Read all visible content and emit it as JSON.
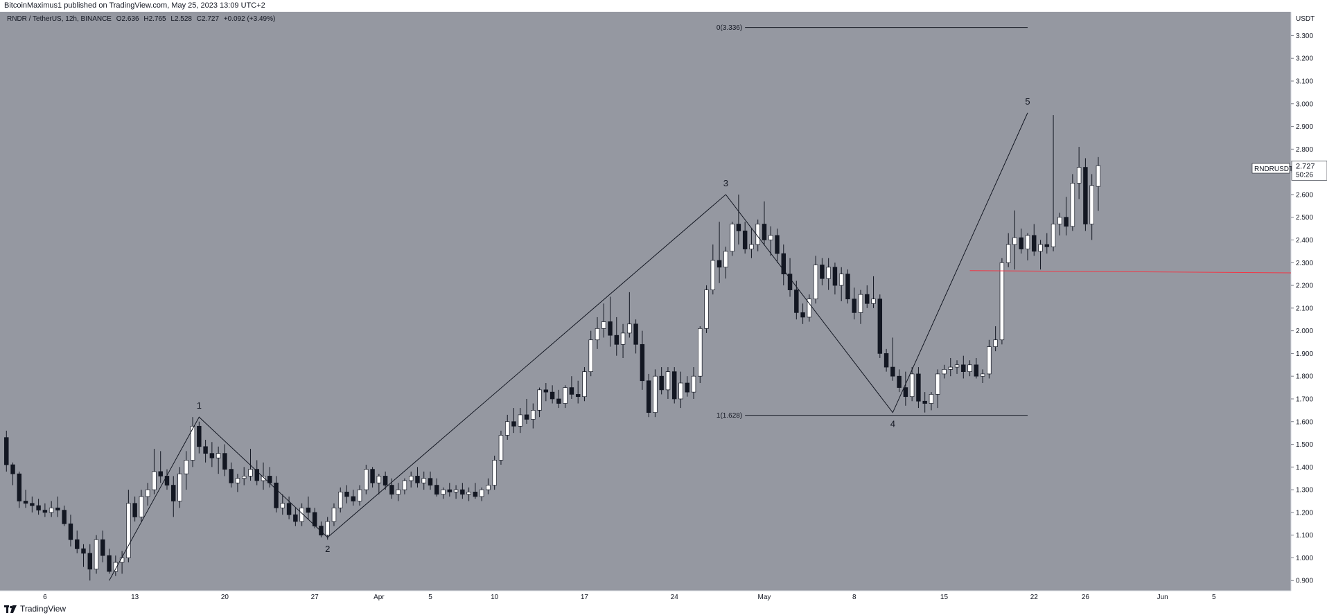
{
  "publisher_line": "BitcoinMaximus1 published on TradingView.com, May 25, 2023 13:09 UTC+2",
  "footer_brand": "TradingView",
  "colors": {
    "pane_background": "#9598a1",
    "up_candle": "#ffffff",
    "down_candle": "#131722",
    "wave_line": "#131722",
    "support_line": "#f23645"
  },
  "legend": {
    "symbol": "RNDR / TetherUS, 12h, BINANCE",
    "open_label": "O",
    "open": "2.636",
    "high_label": "H",
    "high": "2.765",
    "low_label": "L",
    "low": "2.528",
    "close_label": "C",
    "close": "2.727",
    "change": "+0.092 (+3.49%)"
  },
  "price_tag": {
    "ticker": "RNDRUSDT",
    "price": "2.727",
    "countdown": "50:26"
  },
  "chart_data": {
    "type": "candlestick",
    "ylabel": "USDT",
    "ylim": [
      0.855,
      3.405
    ],
    "y_ticks": [
      "0.900",
      "1.000",
      "1.100",
      "1.200",
      "1.300",
      "1.400",
      "1.500",
      "1.600",
      "1.700",
      "1.800",
      "1.900",
      "2.000",
      "2.100",
      "2.200",
      "2.300",
      "2.400",
      "2.500",
      "2.600",
      "2.700",
      "2.800",
      "2.900",
      "3.000",
      "3.100",
      "3.200",
      "3.300"
    ],
    "x_ticks": [
      {
        "label": "6",
        "t": "2023-03-06T00:00"
      },
      {
        "label": "13",
        "t": "2023-03-13T00:00"
      },
      {
        "label": "20",
        "t": "2023-03-20T00:00"
      },
      {
        "label": "27",
        "t": "2023-03-27T00:00"
      },
      {
        "label": "Apr",
        "t": "2023-04-01T00:00"
      },
      {
        "label": "5",
        "t": "2023-04-05T00:00"
      },
      {
        "label": "10",
        "t": "2023-04-10T00:00"
      },
      {
        "label": "17",
        "t": "2023-04-17T00:00"
      },
      {
        "label": "24",
        "t": "2023-04-24T00:00"
      },
      {
        "label": "May",
        "t": "2023-05-01T00:00"
      },
      {
        "label": "8",
        "t": "2023-05-08T00:00"
      },
      {
        "label": "15",
        "t": "2023-05-15T00:00"
      },
      {
        "label": "22",
        "t": "2023-05-22T00:00"
      },
      {
        "label": "26",
        "t": "2023-05-26T00:00"
      },
      {
        "label": "Jun",
        "t": "2023-06-01T00:00"
      },
      {
        "label": "5",
        "t": "2023-06-05T00:00"
      }
    ],
    "x_range": [
      "2023-03-02T12:00",
      "2023-06-11T00:00"
    ],
    "candle_interval_hours": 12,
    "first_candle": "2023-03-03T00:00",
    "ohlc": [
      [
        1.53,
        1.56,
        1.38,
        1.41
      ],
      [
        1.41,
        1.42,
        1.32,
        1.37
      ],
      [
        1.37,
        1.38,
        1.22,
        1.25
      ],
      [
        1.25,
        1.3,
        1.22,
        1.24
      ],
      [
        1.24,
        1.27,
        1.2,
        1.23
      ],
      [
        1.23,
        1.26,
        1.19,
        1.21
      ],
      [
        1.21,
        1.24,
        1.18,
        1.2
      ],
      [
        1.2,
        1.25,
        1.18,
        1.22
      ],
      [
        1.22,
        1.27,
        1.18,
        1.21
      ],
      [
        1.21,
        1.23,
        1.14,
        1.15
      ],
      [
        1.15,
        1.19,
        1.05,
        1.08
      ],
      [
        1.08,
        1.12,
        1.02,
        1.04
      ],
      [
        1.04,
        1.06,
        0.96,
        1.02
      ],
      [
        1.02,
        1.06,
        0.9,
        0.95
      ],
      [
        0.95,
        1.1,
        0.93,
        1.08
      ],
      [
        1.08,
        1.12,
        0.98,
        1.01
      ],
      [
        1.01,
        1.04,
        0.93,
        0.94
      ],
      [
        0.94,
        1.01,
        0.92,
        0.98
      ],
      [
        0.98,
        1.03,
        0.93,
        1.0
      ],
      [
        1.0,
        1.3,
        0.98,
        1.24
      ],
      [
        1.24,
        1.27,
        1.16,
        1.18
      ],
      [
        1.18,
        1.3,
        1.16,
        1.27
      ],
      [
        1.27,
        1.33,
        1.23,
        1.3
      ],
      [
        1.3,
        1.48,
        1.28,
        1.38
      ],
      [
        1.38,
        1.47,
        1.33,
        1.36
      ],
      [
        1.36,
        1.39,
        1.3,
        1.32
      ],
      [
        1.32,
        1.36,
        1.18,
        1.25
      ],
      [
        1.25,
        1.4,
        1.22,
        1.37
      ],
      [
        1.37,
        1.47,
        1.3,
        1.43
      ],
      [
        1.43,
        1.62,
        1.4,
        1.58
      ],
      [
        1.58,
        1.6,
        1.46,
        1.49
      ],
      [
        1.49,
        1.52,
        1.42,
        1.46
      ],
      [
        1.46,
        1.51,
        1.4,
        1.44
      ],
      [
        1.44,
        1.49,
        1.37,
        1.46
      ],
      [
        1.46,
        1.5,
        1.36,
        1.39
      ],
      [
        1.39,
        1.42,
        1.31,
        1.33
      ],
      [
        1.33,
        1.37,
        1.29,
        1.35
      ],
      [
        1.35,
        1.4,
        1.32,
        1.36
      ],
      [
        1.36,
        1.48,
        1.34,
        1.39
      ],
      [
        1.39,
        1.43,
        1.32,
        1.34
      ],
      [
        1.34,
        1.42,
        1.3,
        1.36
      ],
      [
        1.36,
        1.4,
        1.31,
        1.33
      ],
      [
        1.33,
        1.36,
        1.2,
        1.22
      ],
      [
        1.22,
        1.28,
        1.19,
        1.24
      ],
      [
        1.24,
        1.27,
        1.17,
        1.19
      ],
      [
        1.19,
        1.22,
        1.14,
        1.16
      ],
      [
        1.16,
        1.24,
        1.14,
        1.22
      ],
      [
        1.22,
        1.27,
        1.17,
        1.2
      ],
      [
        1.2,
        1.22,
        1.13,
        1.14
      ],
      [
        1.14,
        1.16,
        1.09,
        1.1
      ],
      [
        1.1,
        1.18,
        1.08,
        1.16
      ],
      [
        1.16,
        1.24,
        1.14,
        1.22
      ],
      [
        1.22,
        1.31,
        1.2,
        1.29
      ],
      [
        1.29,
        1.32,
        1.24,
        1.27
      ],
      [
        1.27,
        1.3,
        1.23,
        1.25
      ],
      [
        1.25,
        1.32,
        1.23,
        1.3
      ],
      [
        1.3,
        1.41,
        1.28,
        1.39
      ],
      [
        1.39,
        1.4,
        1.31,
        1.33
      ],
      [
        1.33,
        1.37,
        1.28,
        1.36
      ],
      [
        1.36,
        1.38,
        1.3,
        1.32
      ],
      [
        1.32,
        1.35,
        1.26,
        1.28
      ],
      [
        1.28,
        1.33,
        1.25,
        1.3
      ],
      [
        1.3,
        1.35,
        1.28,
        1.34
      ],
      [
        1.34,
        1.38,
        1.31,
        1.36
      ],
      [
        1.36,
        1.4,
        1.31,
        1.33
      ],
      [
        1.33,
        1.38,
        1.3,
        1.35
      ],
      [
        1.35,
        1.38,
        1.3,
        1.32
      ],
      [
        1.32,
        1.35,
        1.27,
        1.28
      ],
      [
        1.28,
        1.31,
        1.26,
        1.3
      ],
      [
        1.3,
        1.33,
        1.27,
        1.29
      ],
      [
        1.29,
        1.32,
        1.26,
        1.3
      ],
      [
        1.3,
        1.33,
        1.26,
        1.28
      ],
      [
        1.28,
        1.31,
        1.25,
        1.29
      ],
      [
        1.29,
        1.33,
        1.26,
        1.27
      ],
      [
        1.27,
        1.31,
        1.25,
        1.3
      ],
      [
        1.3,
        1.35,
        1.28,
        1.32
      ],
      [
        1.32,
        1.45,
        1.3,
        1.43
      ],
      [
        1.43,
        1.56,
        1.41,
        1.54
      ],
      [
        1.54,
        1.63,
        1.52,
        1.6
      ],
      [
        1.6,
        1.66,
        1.55,
        1.58
      ],
      [
        1.58,
        1.66,
        1.55,
        1.63
      ],
      [
        1.63,
        1.7,
        1.59,
        1.61
      ],
      [
        1.61,
        1.68,
        1.57,
        1.65
      ],
      [
        1.65,
        1.75,
        1.62,
        1.74
      ],
      [
        1.74,
        1.77,
        1.69,
        1.73
      ],
      [
        1.73,
        1.76,
        1.68,
        1.7
      ],
      [
        1.7,
        1.74,
        1.66,
        1.68
      ],
      [
        1.68,
        1.76,
        1.66,
        1.75
      ],
      [
        1.75,
        1.8,
        1.7,
        1.72
      ],
      [
        1.72,
        1.78,
        1.68,
        1.71
      ],
      [
        1.71,
        1.84,
        1.69,
        1.82
      ],
      [
        1.82,
        2.0,
        1.8,
        1.96
      ],
      [
        1.96,
        2.06,
        1.92,
        2.01
      ],
      [
        2.01,
        2.12,
        1.97,
        2.04
      ],
      [
        2.04,
        2.15,
        1.93,
        1.98
      ],
      [
        1.98,
        2.06,
        1.89,
        1.94
      ],
      [
        1.94,
        2.03,
        1.88,
        1.99
      ],
      [
        1.99,
        2.17,
        1.97,
        2.03
      ],
      [
        2.03,
        2.05,
        1.9,
        1.94
      ],
      [
        1.94,
        2.0,
        1.74,
        1.78
      ],
      [
        1.78,
        1.81,
        1.62,
        1.64
      ],
      [
        1.64,
        1.83,
        1.62,
        1.8
      ],
      [
        1.8,
        1.84,
        1.72,
        1.74
      ],
      [
        1.74,
        1.84,
        1.7,
        1.82
      ],
      [
        1.82,
        1.84,
        1.68,
        1.7
      ],
      [
        1.7,
        1.82,
        1.66,
        1.77
      ],
      [
        1.77,
        1.8,
        1.71,
        1.73
      ],
      [
        1.73,
        1.84,
        1.7,
        1.8
      ],
      [
        1.8,
        2.02,
        1.77,
        2.01
      ],
      [
        2.01,
        2.2,
        1.99,
        2.18
      ],
      [
        2.18,
        2.38,
        2.16,
        2.31
      ],
      [
        2.31,
        2.48,
        2.21,
        2.28
      ],
      [
        2.28,
        2.37,
        2.23,
        2.35
      ],
      [
        2.35,
        2.48,
        2.33,
        2.47
      ],
      [
        2.47,
        2.6,
        2.38,
        2.44
      ],
      [
        2.44,
        2.48,
        2.34,
        2.36
      ],
      [
        2.36,
        2.45,
        2.32,
        2.38
      ],
      [
        2.38,
        2.49,
        2.35,
        2.47
      ],
      [
        2.47,
        2.57,
        2.38,
        2.4
      ],
      [
        2.4,
        2.46,
        2.33,
        2.42
      ],
      [
        2.42,
        2.45,
        2.3,
        2.34
      ],
      [
        2.34,
        2.38,
        2.2,
        2.25
      ],
      [
        2.25,
        2.32,
        2.15,
        2.18
      ],
      [
        2.18,
        2.22,
        2.05,
        2.08
      ],
      [
        2.08,
        2.12,
        2.03,
        2.06
      ],
      [
        2.06,
        2.16,
        2.04,
        2.14
      ],
      [
        2.14,
        2.33,
        2.12,
        2.29
      ],
      [
        2.29,
        2.32,
        2.2,
        2.23
      ],
      [
        2.23,
        2.32,
        2.18,
        2.28
      ],
      [
        2.28,
        2.3,
        2.16,
        2.2
      ],
      [
        2.2,
        2.28,
        2.13,
        2.25
      ],
      [
        2.25,
        2.27,
        2.12,
        2.14
      ],
      [
        2.14,
        2.19,
        2.05,
        2.08
      ],
      [
        2.08,
        2.18,
        2.03,
        2.16
      ],
      [
        2.16,
        2.2,
        2.1,
        2.12
      ],
      [
        2.12,
        2.24,
        2.1,
        2.14
      ],
      [
        2.14,
        2.16,
        1.88,
        1.9
      ],
      [
        1.9,
        1.92,
        1.82,
        1.84
      ],
      [
        1.84,
        1.97,
        1.78,
        1.8
      ],
      [
        1.8,
        1.83,
        1.73,
        1.75
      ],
      [
        1.75,
        1.82,
        1.67,
        1.71
      ],
      [
        1.71,
        1.84,
        1.69,
        1.81
      ],
      [
        1.81,
        1.84,
        1.66,
        1.69
      ],
      [
        1.69,
        1.73,
        1.64,
        1.68
      ],
      [
        1.68,
        1.73,
        1.65,
        1.72
      ],
      [
        1.72,
        1.83,
        1.66,
        1.81
      ],
      [
        1.81,
        1.85,
        1.79,
        1.83
      ],
      [
        1.83,
        1.88,
        1.8,
        1.84
      ],
      [
        1.84,
        1.87,
        1.81,
        1.85
      ],
      [
        1.85,
        1.89,
        1.79,
        1.82
      ],
      [
        1.82,
        1.87,
        1.8,
        1.85
      ],
      [
        1.85,
        1.88,
        1.79,
        1.8
      ],
      [
        1.8,
        1.83,
        1.77,
        1.81
      ],
      [
        1.81,
        1.96,
        1.79,
        1.93
      ],
      [
        1.93,
        2.02,
        1.91,
        1.96
      ],
      [
        1.96,
        2.32,
        1.94,
        2.3
      ],
      [
        2.3,
        2.43,
        2.28,
        2.38
      ],
      [
        2.38,
        2.53,
        2.27,
        2.41
      ],
      [
        2.41,
        2.45,
        2.34,
        2.36
      ],
      [
        2.36,
        2.43,
        2.31,
        2.42
      ],
      [
        2.42,
        2.47,
        2.33,
        2.35
      ],
      [
        2.35,
        2.4,
        2.27,
        2.38
      ],
      [
        2.38,
        2.43,
        2.34,
        2.37
      ],
      [
        2.37,
        2.95,
        2.35,
        2.47
      ],
      [
        2.47,
        2.52,
        2.42,
        2.5
      ],
      [
        2.5,
        2.59,
        2.42,
        2.46
      ],
      [
        2.46,
        2.69,
        2.44,
        2.65
      ],
      [
        2.65,
        2.81,
        2.58,
        2.72
      ],
      [
        2.72,
        2.76,
        2.44,
        2.47
      ],
      [
        2.47,
        2.69,
        2.4,
        2.64
      ],
      [
        2.636,
        2.765,
        2.528,
        2.727
      ]
    ],
    "annotations": {
      "wave_points": [
        {
          "label": "",
          "t": "2023-03-11T00:00",
          "price": 0.9
        },
        {
          "label": "1",
          "t": "2023-03-18T00:00",
          "price": 1.62
        },
        {
          "label": "2",
          "t": "2023-03-28T00:00",
          "price": 1.09
        },
        {
          "label": "3",
          "t": "2023-04-28T00:00",
          "price": 2.6
        },
        {
          "label": "4",
          "t": "2023-05-11T00:00",
          "price": 1.64
        },
        {
          "label": "5",
          "t": "2023-05-21T12:00",
          "price": 2.96
        }
      ],
      "fib_levels": [
        {
          "label": "0(3.336)",
          "price": 3.336,
          "t_start": "2023-04-29T12:00",
          "t_end": "2023-05-21T12:00"
        },
        {
          "label": "1(1.628)",
          "price": 1.628,
          "t_start": "2023-04-29T12:00",
          "t_end": "2023-05-21T12:00"
        }
      ],
      "support_line": {
        "t_start": "2023-05-17T00:00",
        "price_start": 2.265,
        "t_end": "2023-06-11T00:00",
        "price_end": 2.255
      }
    }
  }
}
